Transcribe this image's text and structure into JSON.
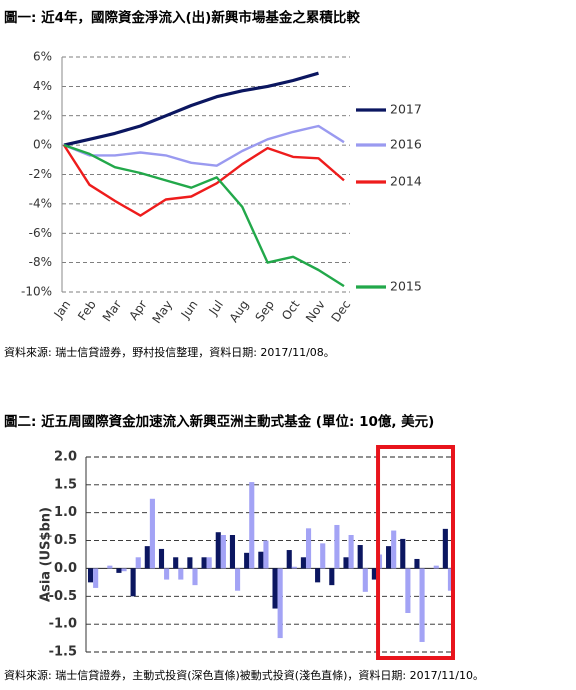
{
  "chart_data": [
    {
      "type": "line",
      "title": "圖一: 近4年，國際資金淨流入(出)新興市場基金之累積比較",
      "source": "資料來源: 瑞士信貸證券，野村投信整理，資料日期: 2017/11/08。",
      "categories": [
        "Jan",
        "Feb",
        "Mar",
        "Apr",
        "May",
        "Jun",
        "Jul",
        "Aug",
        "Sep",
        "Oct",
        "Nov",
        "Dec"
      ],
      "series": [
        {
          "name": "2017",
          "color": "#0b1660",
          "values": [
            0,
            0.4,
            0.8,
            1.3,
            2.0,
            2.7,
            3.3,
            3.7,
            4.0,
            4.4,
            4.9,
            null
          ]
        },
        {
          "name": "2016",
          "color": "#9a9af0",
          "values": [
            0,
            -0.7,
            -0.7,
            -0.5,
            -0.7,
            -1.2,
            -1.4,
            -0.4,
            0.4,
            0.9,
            1.3,
            0.2
          ]
        },
        {
          "name": "2014",
          "color": "#ee1c1c",
          "values": [
            0,
            -2.7,
            -3.8,
            -4.8,
            -3.7,
            -3.5,
            -2.6,
            -1.3,
            -0.2,
            -0.8,
            -0.9,
            -2.4
          ]
        },
        {
          "name": "2015",
          "color": "#22a84a",
          "values": [
            0,
            -0.6,
            -1.5,
            -1.9,
            -2.4,
            -2.9,
            -2.2,
            -4.2,
            -8.0,
            -7.6,
            -8.5,
            -9.6
          ]
        }
      ],
      "ylim": [
        -10,
        6
      ],
      "yticks": [
        {
          "value": 6,
          "label": "6%"
        },
        {
          "value": 4,
          "label": "4%"
        },
        {
          "value": 2,
          "label": "2%"
        },
        {
          "value": 0,
          "label": "0%"
        },
        {
          "value": -2,
          "label": "-2%"
        },
        {
          "value": -4,
          "label": "-4%"
        },
        {
          "value": -6,
          "label": "-6%"
        },
        {
          "value": -8,
          "label": "-8%"
        },
        {
          "value": -10,
          "label": "-10%"
        }
      ],
      "grid": true
    },
    {
      "type": "bar",
      "title": "圖二: 近五周國際資金加速流入新興亞洲主動式基金 (單位: 10億, 美元)",
      "source": "資料來源: 瑞士信貸證券，主動式投資(深色直條)被動式投資(淺色直條)，資料日期: 2017/11/10。",
      "y_label": "Asia (US$bn)",
      "categories": [
        null,
        null,
        null,
        null,
        null,
        null,
        null,
        null,
        null,
        null,
        null,
        null,
        null,
        null,
        null,
        null,
        null,
        null,
        null,
        null,
        null,
        null,
        null,
        null,
        null,
        null
      ],
      "series": [
        {
          "color": "#0b1660",
          "values": [
            -0.25,
            0.0,
            -0.08,
            -0.5,
            0.4,
            0.35,
            0.2,
            0.2,
            0.2,
            0.65,
            0.6,
            0.28,
            0.3,
            -0.72,
            0.33,
            0.2,
            -0.25,
            -0.3,
            0.2,
            0.42,
            -0.2,
            0.4,
            0.53,
            0.17,
            0.0,
            0.71
          ]
        },
        {
          "color": "#a3a3f5",
          "values": [
            -0.35,
            0.05,
            -0.05,
            0.2,
            1.25,
            -0.2,
            -0.2,
            -0.3,
            0.2,
            0.6,
            -0.4,
            1.55,
            0.5,
            -1.25,
            0.03,
            0.72,
            0.45,
            0.78,
            0.6,
            -0.42,
            0.25,
            0.68,
            -0.8,
            -1.32,
            0.05,
            -0.4
          ]
        }
      ],
      "ylim": [
        -1.5,
        2.0
      ],
      "yticks": [
        {
          "value": 2.0,
          "label": "2.0"
        },
        1.5,
        {
          "value": 1.0,
          "label": "1.0"
        },
        0.5,
        {
          "value": 0.0,
          "label": "0.0"
        },
        -0.5,
        {
          "value": -1.0,
          "label": "-1.0"
        },
        -1.5
      ],
      "grid": true
    }
  ]
}
